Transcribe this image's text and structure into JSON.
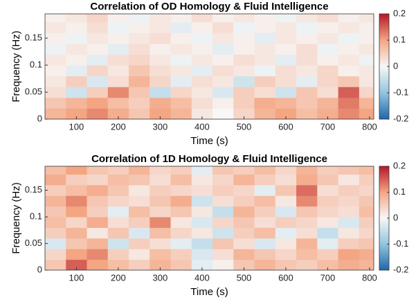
{
  "chart_data": [
    {
      "type": "heatmap",
      "title": "Correlation of OD Homology  & Fluid Intelligence",
      "xlabel": "Time (s)",
      "ylabel": "Frequency (Hz)",
      "x": [
        50,
        100,
        150,
        200,
        250,
        300,
        350,
        400,
        450,
        500,
        550,
        600,
        650,
        700,
        750,
        800
      ],
      "y": [
        0.01,
        0.03,
        0.05,
        0.07,
        0.09,
        0.11,
        0.13,
        0.15,
        0.17,
        0.19
      ],
      "z": [
        [
          0.08,
          0.1,
          0.12,
          0.09,
          0.06,
          0.1,
          0.08,
          0.02,
          0.0,
          0.04,
          0.08,
          0.1,
          0.07,
          0.09,
          0.12,
          0.1
        ],
        [
          0.06,
          0.08,
          0.1,
          0.07,
          0.05,
          0.09,
          0.07,
          0.03,
          0.01,
          0.05,
          0.09,
          0.08,
          0.06,
          0.08,
          0.13,
          0.08
        ],
        [
          0.03,
          -0.04,
          0.05,
          0.12,
          0.06,
          -0.05,
          0.04,
          0.02,
          -0.03,
          0.05,
          0.03,
          -0.04,
          0.06,
          0.03,
          0.15,
          0.04
        ],
        [
          0.02,
          0.05,
          -0.03,
          0.03,
          0.08,
          0.04,
          -0.02,
          0.03,
          0.02,
          -0.04,
          0.05,
          0.03,
          -0.02,
          0.04,
          0.06,
          0.02
        ],
        [
          0.01,
          -0.02,
          0.04,
          0.02,
          0.06,
          0.03,
          0.02,
          -0.02,
          0.03,
          0.02,
          -0.01,
          0.03,
          0.02,
          0.04,
          0.01,
          0.02
        ],
        [
          0.02,
          0.01,
          -0.02,
          0.03,
          0.04,
          0.02,
          -0.01,
          0.02,
          0.01,
          0.03,
          0.02,
          -0.02,
          0.03,
          0.01,
          0.02,
          -0.01
        ],
        [
          -0.01,
          0.02,
          0.01,
          -0.02,
          0.03,
          0.01,
          0.02,
          0.01,
          -0.02,
          0.01,
          0.02,
          0.01,
          0.03,
          -0.01,
          0.01,
          0.02
        ],
        [
          0.01,
          -0.01,
          0.02,
          0.01,
          0.02,
          0.03,
          0.01,
          -0.01,
          0.02,
          0.01,
          -0.02,
          0.02,
          0.01,
          0.02,
          -0.01,
          0.01
        ],
        [
          0.02,
          0.01,
          0.03,
          -0.01,
          0.01,
          0.02,
          -0.02,
          0.01,
          0.03,
          -0.01,
          0.01,
          0.02,
          -0.01,
          0.01,
          0.02,
          0.01
        ],
        [
          0.01,
          0.02,
          0.04,
          0.01,
          -0.01,
          0.02,
          0.01,
          0.03,
          0.01,
          0.02,
          0.01,
          -0.01,
          0.02,
          0.03,
          0.01,
          0.02
        ]
      ],
      "xlim": [
        25,
        810
      ],
      "xticks": [
        100,
        200,
        300,
        400,
        500,
        600,
        700,
        800
      ],
      "ylim": [
        0,
        0.195
      ],
      "yticks": [
        0,
        0.05,
        0.1,
        0.15
      ],
      "clim": [
        -0.2,
        0.2
      ],
      "cticks": [
        -0.2,
        -0.1,
        0,
        0.1,
        0.2
      ],
      "colormap": [
        "#2166ac",
        "#92c5de",
        "#f7f7f7",
        "#f4a582",
        "#b2182b"
      ]
    },
    {
      "type": "heatmap",
      "title": "Correlation of 1D Homology  & Fluid Intelligence",
      "xlabel": "Time (s)",
      "ylabel": "Frequency (Hz)",
      "x": [
        50,
        100,
        150,
        200,
        250,
        300,
        350,
        400,
        450,
        500,
        550,
        600,
        650,
        700,
        750,
        800
      ],
      "y": [
        0.01,
        0.03,
        0.05,
        0.07,
        0.09,
        0.11,
        0.13,
        0.15,
        0.17,
        0.19
      ],
      "z": [
        [
          0.06,
          0.15,
          0.1,
          0.07,
          0.05,
          0.08,
          0.06,
          -0.02,
          0.01,
          0.06,
          0.08,
          0.06,
          0.05,
          0.07,
          0.09,
          0.08
        ],
        [
          0.04,
          0.1,
          0.12,
          0.05,
          0.02,
          0.07,
          0.05,
          -0.03,
          0.03,
          0.08,
          0.06,
          0.04,
          0.07,
          0.05,
          0.1,
          0.09
        ],
        [
          -0.03,
          0.06,
          0.08,
          -0.04,
          0.05,
          0.03,
          -0.02,
          -0.05,
          0.06,
          0.03,
          -0.03,
          0.02,
          0.08,
          -0.02,
          0.05,
          0.06
        ],
        [
          0.05,
          0.08,
          0.02,
          0.06,
          -0.03,
          0.07,
          0.04,
          0.02,
          -0.04,
          0.05,
          0.07,
          -0.02,
          0.03,
          -0.05,
          0.02,
          0.04
        ],
        [
          0.07,
          0.04,
          0.09,
          0.03,
          0.05,
          0.12,
          0.02,
          -0.03,
          0.04,
          0.06,
          0.03,
          0.05,
          0.04,
          0.02,
          -0.03,
          0.05
        ],
        [
          0.06,
          0.1,
          0.05,
          -0.02,
          0.07,
          0.04,
          0.06,
          0.02,
          -0.05,
          0.08,
          0.05,
          -0.03,
          0.06,
          0.04,
          0.03,
          0.07
        ],
        [
          0.08,
          0.12,
          0.06,
          0.04,
          0.03,
          0.06,
          0.09,
          -0.04,
          0.03,
          0.05,
          0.07,
          0.02,
          0.12,
          0.05,
          0.04,
          0.06
        ],
        [
          0.05,
          0.07,
          0.09,
          0.06,
          0.02,
          0.05,
          0.04,
          0.03,
          0.05,
          0.04,
          -0.02,
          0.06,
          0.14,
          0.03,
          0.05,
          0.04
        ],
        [
          0.09,
          0.05,
          0.04,
          0.07,
          0.06,
          0.03,
          0.07,
          0.02,
          0.04,
          0.08,
          0.05,
          0.03,
          0.09,
          0.06,
          0.02,
          0.05
        ],
        [
          0.07,
          0.1,
          0.06,
          0.05,
          0.08,
          0.04,
          0.05,
          -0.02,
          0.06,
          0.05,
          0.07,
          0.04,
          0.08,
          0.05,
          0.06,
          0.07
        ]
      ],
      "xlim": [
        25,
        810
      ],
      "xticks": [
        100,
        200,
        300,
        400,
        500,
        600,
        700,
        800
      ],
      "ylim": [
        0,
        0.195
      ],
      "yticks": [
        0,
        0.05,
        0.1,
        0.15
      ],
      "clim": [
        -0.2,
        0.2
      ],
      "cticks": [
        -0.2,
        -0.1,
        0,
        0.1,
        0.2
      ],
      "colormap": [
        "#2166ac",
        "#92c5de",
        "#f7f7f7",
        "#f4a582",
        "#b2182b"
      ]
    }
  ]
}
